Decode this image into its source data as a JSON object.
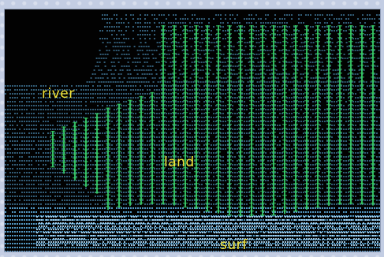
{
  "labels": {
    "river": "river",
    "land": "land",
    "surf": "surf"
  },
  "colors": {
    "background": "#020202",
    "water_dots": "#5aa6d6",
    "land_lines": "#39d46b",
    "label_text": "#f5e73a",
    "frame": "#c3cde3"
  }
}
